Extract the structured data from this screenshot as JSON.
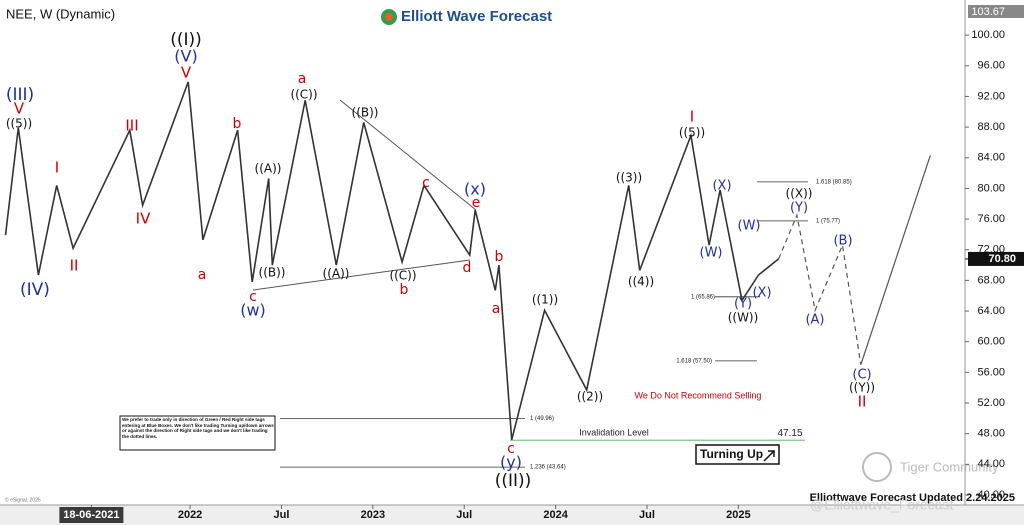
{
  "chart_data": {
    "type": "line",
    "title": "NEE, W (Dynamic)",
    "brand": "Elliott Wave Forecast",
    "footer": "Elliottwave Forecast Updated 2.24.2025",
    "copyright": "© eSignal, 2025",
    "watermark": "Tiger Community",
    "handle": "@Elliottwave_Forecast",
    "notice": "We Do Not Recommend Selling",
    "signal": "Turning Up",
    "disclaimer": "We prefer to trade only in direction of Green / Red Right side tags entering at Blue Boxes. We don't like trading Turning up/down arrows or against the direction of Right side tags and we don't like trading the dotted lines.",
    "xlim": [
      2020.96,
      2026.24
    ],
    "ylim": [
      40,
      103.67
    ],
    "xticks": [
      {
        "value": 2021.46,
        "label": "18-06-2021"
      },
      2022,
      {
        "value": 2022.5,
        "label": "Jul"
      },
      2023,
      {
        "value": 2023.5,
        "label": "Jul"
      },
      2024,
      {
        "value": 2024.5,
        "label": "Jul"
      },
      2025
    ],
    "yticks": [
      {
        "value": 40,
        "label": "40.00"
      },
      {
        "value": 44,
        "label": "44.00"
      },
      {
        "value": 48,
        "label": "48.00"
      },
      {
        "value": 52,
        "label": "52.00"
      },
      {
        "value": 56,
        "label": "56.00"
      },
      {
        "value": 60,
        "label": "60.00"
      },
      {
        "value": 64,
        "label": "64.00"
      },
      {
        "value": 68,
        "label": "68.00"
      },
      {
        "value": 72,
        "label": "72.00"
      },
      {
        "value": 76,
        "label": "76.00"
      },
      {
        "value": 80,
        "label": "80.00"
      },
      {
        "value": 84,
        "label": "84.00"
      },
      {
        "value": 88,
        "label": "88.00"
      },
      {
        "value": 92,
        "label": "92.00"
      },
      {
        "value": 96,
        "label": "96.00"
      },
      {
        "value": 100,
        "label": "100.00"
      }
    ],
    "last_price": {
      "value": 70.8,
      "label": "70.80"
    },
    "axis_top": {
      "value": 103.67,
      "label": "103.67"
    },
    "series": [
      {
        "style": "solid",
        "color": "#333333",
        "x": [
          2020.99,
          2021.06,
          2021.17,
          2021.27,
          2021.36,
          2021.67,
          2021.74,
          2021.99,
          2022.07,
          2022.26,
          2022.34,
          2022.43,
          2022.45,
          2022.63,
          2022.8,
          2022.95,
          2023.16,
          2023.28,
          2023.53,
          2023.56,
          2023.67,
          2023.69,
          2023.76,
          2023.94,
          2024.17,
          2024.4,
          2024.46,
          2024.74,
          2024.84,
          2024.9,
          2025.02,
          2025.11,
          2025.22
        ],
        "values": [
          73.9,
          87.9,
          68.7,
          80.4,
          72.2,
          87.6,
          77.8,
          93.9,
          73.3,
          87.6,
          67.8,
          81.3,
          70.0,
          91.5,
          70.0,
          88.6,
          70.4,
          80.4,
          71.3,
          77.2,
          66.7,
          70.0,
          47.2,
          64.1,
          53.7,
          80.4,
          69.3,
          86.9,
          72.6,
          79.8,
          65.4,
          68.7,
          70.8
        ]
      },
      {
        "style": "dashed",
        "color": "#555555",
        "x": [
          2025.22,
          2025.32,
          2025.42,
          2025.57,
          2025.67
        ],
        "values": [
          70.8,
          76.5,
          64.1,
          72.6,
          57.0
        ]
      },
      {
        "style": "solid",
        "color": "#555555",
        "x": [
          2025.67,
          2026.05
        ],
        "values": [
          57.0,
          84.3
        ]
      }
    ],
    "levels": [
      {
        "label": "1.618 (80.85)",
        "value": 80.85,
        "color": "#333333"
      },
      {
        "label": "1 (75.77)",
        "value": 75.77,
        "color": "#333333"
      },
      {
        "label": "1 (65.86)",
        "value": 65.86,
        "color": "#333333"
      },
      {
        "label": "1.618 (57.50)",
        "value": 57.5,
        "color": "#333333"
      },
      {
        "label": "1 (49.96)",
        "value": 49.96,
        "color": "#333333"
      },
      {
        "label": "1.236 (43.64)",
        "value": 43.64,
        "color": "#333333"
      },
      {
        "label": "Invalidation Level",
        "value": 47.15,
        "color": "#4caf50"
      }
    ],
    "annotations": [
      {
        "text": "((I))",
        "color": "#111111"
      },
      {
        "text": "(V)",
        "color": "#1f2fa8"
      },
      {
        "text": "V",
        "color": "#d10000"
      },
      {
        "text": "(III)",
        "color": "#1f2fa8"
      },
      {
        "text": "V",
        "color": "#d10000"
      },
      {
        "text": "((5))",
        "color": "#111111"
      },
      {
        "text": "I",
        "color": "#d10000"
      },
      {
        "text": "II",
        "color": "#d10000"
      },
      {
        "text": "(IV)",
        "color": "#1f2fa8"
      },
      {
        "text": "III",
        "color": "#d10000"
      },
      {
        "text": "IV",
        "color": "#d10000"
      },
      {
        "text": "a",
        "color": "#d10000"
      },
      {
        "text": "b",
        "color": "#d10000"
      },
      {
        "text": "c",
        "color": "#d10000"
      },
      {
        "text": "(w)",
        "color": "#1f2fa8"
      },
      {
        "text": "((A))",
        "color": "#111111"
      },
      {
        "text": "((B))",
        "color": "#111111"
      },
      {
        "text": "a",
        "color": "#d10000"
      },
      {
        "text": "((C))",
        "color": "#111111"
      },
      {
        "text": "((A))",
        "color": "#111111"
      },
      {
        "text": "((B))",
        "color": "#111111"
      },
      {
        "text": "((C))",
        "color": "#111111"
      },
      {
        "text": "b",
        "color": "#d10000"
      },
      {
        "text": "c",
        "color": "#d10000"
      },
      {
        "text": "d",
        "color": "#d10000"
      },
      {
        "text": "(x)",
        "color": "#1f2fa8"
      },
      {
        "text": "e",
        "color": "#d10000"
      },
      {
        "text": "b",
        "color": "#d10000"
      },
      {
        "text": "a",
        "color": "#d10000"
      },
      {
        "text": "((1))",
        "color": "#111111"
      },
      {
        "text": "((2))",
        "color": "#111111"
      },
      {
        "text": "c",
        "color": "#d10000"
      },
      {
        "text": "(y)",
        "color": "#1f2fa8"
      },
      {
        "text": "((II))",
        "color": "#111111"
      },
      {
        "text": "((3))",
        "color": "#111111"
      },
      {
        "text": "((4))",
        "color": "#111111"
      },
      {
        "text": "I",
        "color": "#d10000"
      },
      {
        "text": "((5))",
        "color": "#111111"
      },
      {
        "text": "(X)",
        "color": "#1f2fa8"
      },
      {
        "text": "(W)",
        "color": "#1f2fa8"
      },
      {
        "text": "(W)",
        "color": "#1f2fa8"
      },
      {
        "text": "(Y)",
        "color": "#1f2fa8"
      },
      {
        "text": "(X)",
        "color": "#1f2fa8"
      },
      {
        "text": "((W))",
        "color": "#111111"
      },
      {
        "text": "((X))",
        "color": "#111111"
      },
      {
        "text": "(Y)",
        "color": "#1f2fa8"
      },
      {
        "text": "(B)",
        "color": "#1f2fa8"
      },
      {
        "text": "(A)",
        "color": "#1f2fa8"
      },
      {
        "text": "(C)",
        "color": "#1f2fa8"
      },
      {
        "text": "((Y))",
        "color": "#111111"
      },
      {
        "text": "II",
        "color": "#d10000"
      }
    ]
  }
}
